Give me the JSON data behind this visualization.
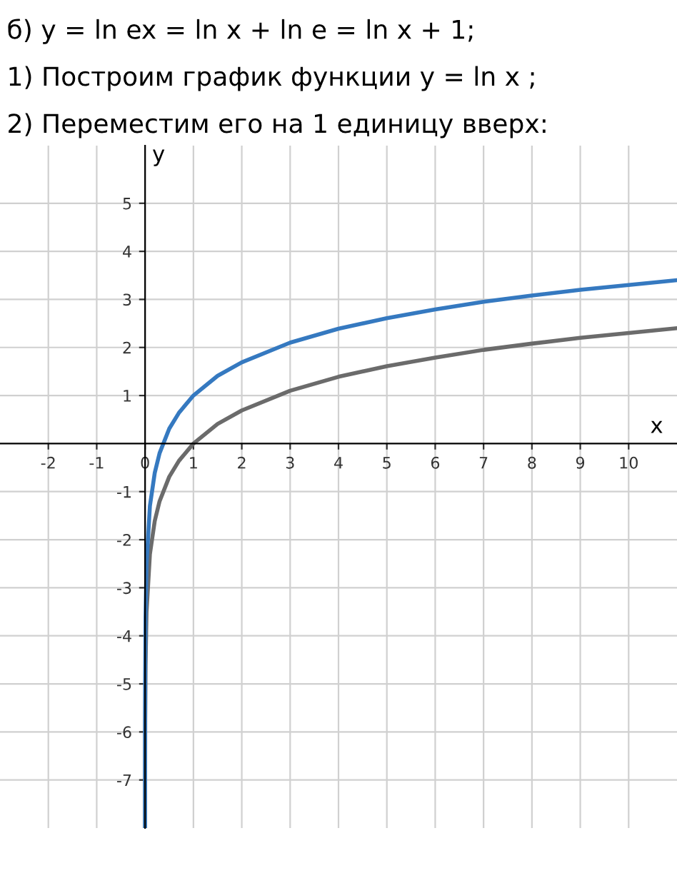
{
  "chart_data": {
    "type": "line",
    "title": "б) y = ln ex = ln x + ln e = ln x + 1;",
    "annotations": [
      "1) Построим график функции y = ln x ;",
      "2) Переместим его на 1 единицу вверх:"
    ],
    "xlabel": "x",
    "ylabel": "y",
    "series": [
      {
        "color": "#6b6b6b",
        "x": [
          0.00034,
          0.001,
          0.003,
          0.01,
          0.03,
          0.1,
          0.2,
          0.3,
          0.5,
          0.7,
          1,
          1.5,
          2,
          3,
          4,
          5,
          6,
          7,
          8,
          9,
          10,
          11
        ],
        "values": [
          -7.99,
          -6.91,
          -5.81,
          -4.61,
          -3.51,
          -2.3,
          -1.61,
          -1.2,
          -0.69,
          -0.36,
          0,
          0.41,
          0.69,
          1.1,
          1.39,
          1.61,
          1.79,
          1.95,
          2.08,
          2.2,
          2.3,
          2.4
        ]
      },
      {
        "color": "#3579c0",
        "x": [
          0.000125,
          0.0004,
          0.001,
          0.003,
          0.01,
          0.03,
          0.1,
          0.2,
          0.3,
          0.5,
          0.7,
          1,
          1.5,
          2,
          3,
          4,
          5,
          6,
          7,
          8,
          9,
          10,
          11
        ],
        "values": [
          -7.99,
          -6.82,
          -5.91,
          -4.81,
          -3.61,
          -2.51,
          -1.3,
          -0.61,
          -0.2,
          0.31,
          0.64,
          1,
          1.41,
          1.69,
          2.1,
          2.39,
          2.61,
          2.79,
          2.95,
          3.08,
          3.2,
          3.3,
          3.4
        ]
      }
    ],
    "xlim": [
      -3,
      11
    ],
    "ylim": [
      -8,
      6.2
    ],
    "xticks": [
      -2,
      -1,
      0,
      1,
      2,
      3,
      4,
      5,
      6,
      7,
      8,
      9,
      10
    ],
    "yticks": [
      -7,
      -6,
      -5,
      -4,
      -3,
      -2,
      -1,
      1,
      2,
      3,
      4,
      5
    ],
    "grid": true,
    "legend": false,
    "marker": "none",
    "line_style": "solid"
  }
}
